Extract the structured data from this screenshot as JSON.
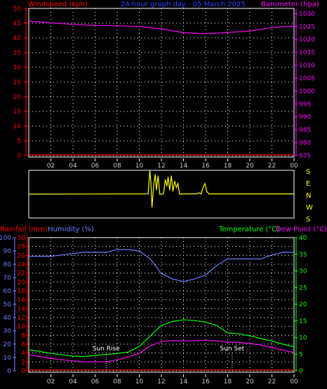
{
  "header": {
    "left": "Windspeed (kph)",
    "center": "24 hour graph day - 05 March 2025",
    "right": "Barometer (hpa)"
  },
  "footer": {
    "rainfall": "Rainfall (mm)",
    "humidity": "Humidity (%)",
    "temperature": "Temperature (°C)",
    "dewpoint": "Dew Point (°C)"
  },
  "colors": {
    "wind": "#ff0000",
    "barometer": "#ff00ff",
    "direction": "#ffff00",
    "humidity": "#6f7fff",
    "temperature": "#00ff00",
    "dewpoint": "#ff00ff",
    "rain": "#ff0000",
    "sun": "#ffffff"
  },
  "x_ticks": [
    "02",
    "04",
    "06",
    "08",
    "10",
    "12",
    "14",
    "16",
    "18",
    "20",
    "22",
    "00"
  ],
  "chart_data": [
    {
      "type": "line",
      "name": "wind-barometer",
      "left_axis": {
        "label": "Windspeed (kph)",
        "ticks": [
          "0",
          "5",
          "10",
          "15",
          "20",
          "25",
          "30",
          "35",
          "40",
          "45",
          "50"
        ],
        "range": [
          0,
          50
        ]
      },
      "right_axis": {
        "label": "Barometer (hpa)",
        "ticks": [
          "975",
          "980",
          "985",
          "990",
          "995",
          "1000",
          "1005",
          "1010",
          "1015",
          "1020",
          "1025",
          "1030"
        ],
        "range": [
          975,
          1032
        ]
      },
      "x": [
        0,
        2,
        4,
        6,
        8,
        10,
        12,
        14,
        16,
        18,
        20,
        22,
        24
      ],
      "series": [
        {
          "name": "Windspeed",
          "axis": "left",
          "values": [
            0,
            0,
            0,
            0,
            0,
            0,
            0,
            0,
            0,
            0,
            0,
            0,
            0
          ]
        },
        {
          "name": "Barometer",
          "axis": "right",
          "values": [
            1027.1,
            1026.4,
            1025.8,
            1025.4,
            1025.3,
            1025.0,
            1024.1,
            1022.6,
            1022.2,
            1022.7,
            1023.2,
            1024.6,
            1025.2
          ]
        }
      ],
      "grid": true
    },
    {
      "type": "line",
      "name": "wind-direction",
      "right_labels": [
        "S",
        "E",
        "N",
        "W",
        "S"
      ],
      "x": [
        0,
        10.8,
        10.95,
        11.05,
        11.15,
        11.3,
        11.45,
        11.55,
        11.7,
        11.85,
        12.0,
        12.2,
        12.35,
        12.5,
        12.6,
        12.75,
        12.9,
        13.05,
        13.2,
        13.35,
        13.5,
        13.65,
        13.8,
        13.95,
        14.1,
        15.2,
        15.4,
        15.6,
        15.8,
        15.95,
        16.1,
        16.3,
        24
      ],
      "values": [
        180,
        182,
        360,
        270,
        80,
        250,
        330,
        210,
        320,
        180,
        180,
        182,
        290,
        240,
        310,
        210,
        320,
        200,
        280,
        230,
        260,
        180,
        182,
        180,
        182,
        182,
        190,
        182,
        240,
        260,
        200,
        182,
        182
      ],
      "ylim": [
        0,
        360
      ]
    },
    {
      "type": "line",
      "name": "rain-humidity-temperature",
      "rain_axis": {
        "label": "Rainfall (mm)",
        "ticks": [
          "0",
          "2",
          "4",
          "6",
          "8",
          "10",
          "12",
          "14",
          "16",
          "18",
          "20",
          "22",
          "24",
          "26",
          "28",
          "30"
        ],
        "range": [
          0,
          30
        ]
      },
      "humidity_axis": {
        "label": "Humidity (%)",
        "ticks": [
          "0",
          "10",
          "20",
          "30",
          "40",
          "50",
          "60",
          "70",
          "80",
          "90",
          "100"
        ],
        "range": [
          0,
          100
        ]
      },
      "temp_axis": {
        "label": "Temperature (°C)",
        "ticks": [
          "0",
          "5",
          "10",
          "15",
          "20",
          "25",
          "30",
          "35",
          "40"
        ],
        "range": [
          0,
          40
        ]
      },
      "x": [
        0,
        1,
        2,
        3,
        4,
        5,
        6,
        7,
        8,
        9,
        10,
        11,
        12,
        13,
        14,
        15,
        16,
        17,
        18,
        19,
        20,
        21,
        22,
        23,
        24
      ],
      "series": [
        {
          "name": "Humidity",
          "axis": "humidity",
          "values": [
            86,
            86,
            86,
            87,
            88,
            89,
            89,
            89,
            91,
            91,
            90,
            84,
            73,
            69,
            67,
            69,
            72,
            79,
            84,
            84,
            84,
            84,
            87,
            89,
            89
          ]
        },
        {
          "name": "Temperature",
          "axis": "temp",
          "values": [
            6.3,
            5.8,
            5.2,
            4.8,
            4.4,
            4.3,
            4.6,
            4.9,
            5.2,
            5.6,
            7.3,
            10.5,
            13.6,
            14.8,
            15.3,
            15.1,
            14.6,
            13.6,
            11.4,
            11.1,
            10.5,
            9.7,
            8.9,
            8.0,
            7.2
          ]
        },
        {
          "name": "Dew Point",
          "axis": "temp",
          "values": [
            4.8,
            4.3,
            3.7,
            3.3,
            3.0,
            2.7,
            2.7,
            2.7,
            3.3,
            4.2,
            5.2,
            7.5,
            8.8,
            9.1,
            9.0,
            9.0,
            9.2,
            9.0,
            8.6,
            8.5,
            8.2,
            7.7,
            7.0,
            6.2,
            5.5
          ]
        },
        {
          "name": "Rainfall",
          "axis": "rain",
          "values": [
            0,
            0,
            0,
            0,
            0,
            0,
            0,
            0,
            0,
            0,
            0,
            0,
            0,
            0,
            0,
            0,
            0,
            0,
            0,
            0,
            0,
            0,
            0,
            0,
            0
          ]
        }
      ],
      "markers": [
        {
          "label": "Sun Rise",
          "x": 7.0
        },
        {
          "label": "Sun Set",
          "x": 18.4
        }
      ],
      "grid": true
    }
  ]
}
